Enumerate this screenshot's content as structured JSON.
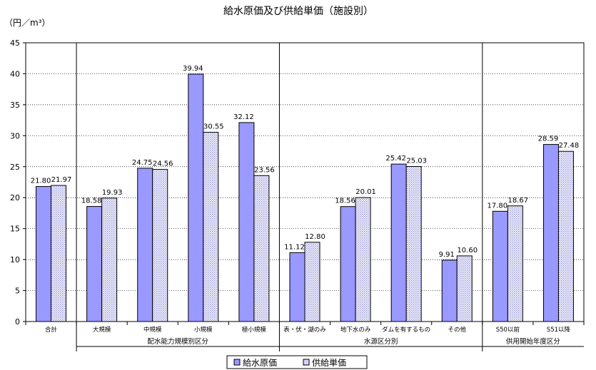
{
  "chart_data": {
    "type": "bar",
    "title": "給水原価及び供給単価（施設別）",
    "ylabel": "（円／m³）",
    "ylim": [
      0,
      45
    ],
    "ytick_step": 5,
    "yticks": [
      "0",
      "5",
      "10",
      "15",
      "20",
      "25",
      "30",
      "35",
      "40",
      "45"
    ],
    "grid": true,
    "legend_position": "bottom",
    "categories": [
      "合計",
      "大規模",
      "中規模",
      "小規模",
      "極小規模",
      "表・伏・湖のみ",
      "地下水のみ",
      "ダムを有するもの",
      "その他",
      "S50以前",
      "S51以降"
    ],
    "groups": [
      {
        "label": "",
        "start": 0,
        "end": 0
      },
      {
        "label": "配水能力規模別区分",
        "start": 1,
        "end": 4
      },
      {
        "label": "水源区分別",
        "start": 5,
        "end": 8
      },
      {
        "label": "供用開始年度区分",
        "start": 9,
        "end": 10
      }
    ],
    "series": [
      {
        "name": "給水原価",
        "color": "#9999ff",
        "pattern": "solid",
        "values": [
          21.8,
          18.58,
          24.75,
          39.94,
          32.12,
          11.12,
          18.56,
          25.42,
          9.91,
          17.8,
          28.59
        ],
        "labels": [
          "21.80",
          "18.58",
          "24.75",
          "39.94",
          "32.12",
          "11.12",
          "18.56",
          "25.42",
          "9.91",
          "17.80",
          "28.59"
        ]
      },
      {
        "name": "供給単価",
        "color": "#c8c8f0",
        "pattern": "dotted",
        "values": [
          21.97,
          19.93,
          24.56,
          30.55,
          23.56,
          12.8,
          20.01,
          25.03,
          10.6,
          18.67,
          27.48
        ],
        "labels": [
          "21.97",
          "19.93",
          "24.56",
          "30.55",
          "23.56",
          "12.80",
          "20.01",
          "25.03",
          "10.60",
          "18.67",
          "27.48"
        ]
      }
    ]
  }
}
